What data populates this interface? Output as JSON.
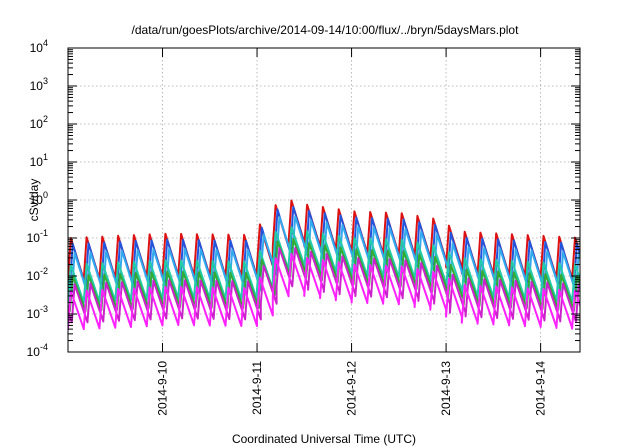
{
  "chart_data": {
    "type": "line",
    "title": "/data/run/goesPlots/archive/2014-09-14/10:00/flux/../bryn/5daysMars.plot",
    "xlabel": "Coordinated Universal Time (UTC)",
    "ylabel": "cSv/day",
    "yscale": "log",
    "ylim": [
      0.0001,
      10000
    ],
    "y_ticks": [
      {
        "base": "10",
        "exp": "-4",
        "value": 0.0001
      },
      {
        "base": "10",
        "exp": "-3",
        "value": 0.001
      },
      {
        "base": "10",
        "exp": "-2",
        "value": 0.01
      },
      {
        "base": "10",
        "exp": "-1",
        "value": 0.1
      },
      {
        "base": "10",
        "exp": "0",
        "value": 1
      },
      {
        "base": "10",
        "exp": "1",
        "value": 10
      },
      {
        "base": "10",
        "exp": "2",
        "value": 100
      },
      {
        "base": "10",
        "exp": "3",
        "value": 1000
      },
      {
        "base": "10",
        "exp": "4",
        "value": 10000
      }
    ],
    "xlim": [
      "2014-09-09T00:00",
      "2014-09-14T10:00"
    ],
    "x_ticks": [
      "2014-9-10",
      "2014-9-11",
      "2014-9-12",
      "2014-9-13",
      "2014-9-14"
    ],
    "grid": true,
    "legend": "none",
    "cycle_hours": 4,
    "envelope": [
      {
        "date": "2014-09-09T00:00",
        "peak": 0.1
      },
      {
        "date": "2014-09-10T00:00",
        "peak": 0.13
      },
      {
        "date": "2014-09-10T22:00",
        "peak": 0.12
      },
      {
        "date": "2014-09-11T03:00",
        "peak": 0.6
      },
      {
        "date": "2014-09-11T06:00",
        "peak": 1.1
      },
      {
        "date": "2014-09-11T12:00",
        "peak": 0.75
      },
      {
        "date": "2014-09-12T00:00",
        "peak": 0.5
      },
      {
        "date": "2014-09-12T12:00",
        "peak": 0.45
      },
      {
        "date": "2014-09-12T22:00",
        "peak": 0.3
      },
      {
        "date": "2014-09-13T02:00",
        "peak": 0.15
      },
      {
        "date": "2014-09-14T10:00",
        "peak": 0.1
      }
    ],
    "series": [
      {
        "color": "#dd1111",
        "peak_factor": 1.0,
        "trough_factor": 0.08
      },
      {
        "color": "#2255dd",
        "peak_factor": 0.7,
        "trough_factor": 0.05
      },
      {
        "color": "#33aaee",
        "peak_factor": 0.4,
        "trough_factor": 0.035
      },
      {
        "color": "#22ccaa",
        "peak_factor": 0.2,
        "trough_factor": 0.02
      },
      {
        "color": "#33aa33",
        "peak_factor": 0.1,
        "trough_factor": 0.012
      },
      {
        "color": "#cc22cc",
        "peak_factor": 0.06,
        "trough_factor": 0.006
      },
      {
        "color": "#ff22ff",
        "peak_factor": 0.04,
        "trough_factor": 0.004
      }
    ]
  }
}
